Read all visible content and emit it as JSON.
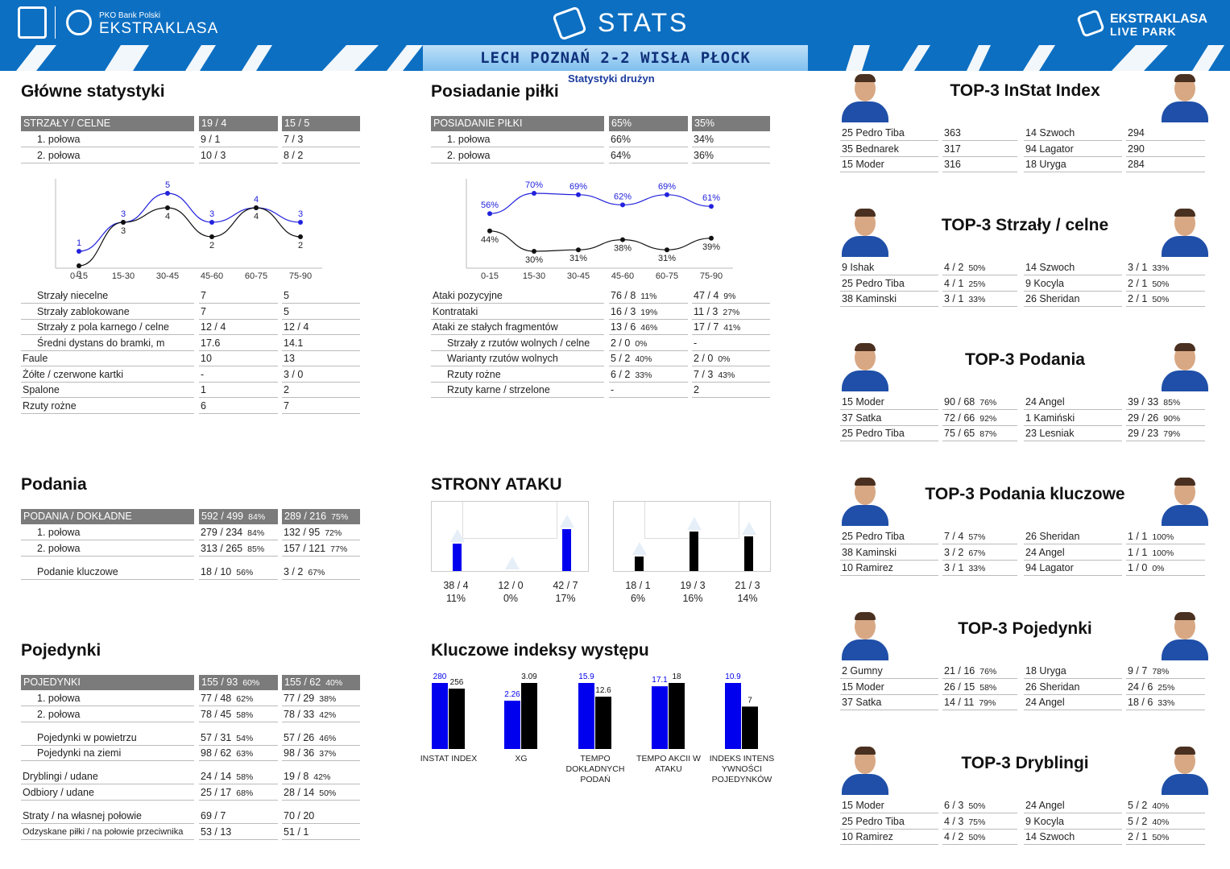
{
  "header": {
    "pko": "PKO Bank Polski",
    "league": "EKSTRAKLASA",
    "stats": "STATS",
    "live1": "EKSTRAKLASA",
    "live2": "LIVE PARK",
    "match": "LECH POZNAŃ 2-2 WISŁA PŁOCK",
    "subtitle": "Statystyki drużyn"
  },
  "main": {
    "title": "Główne statystyki",
    "head": [
      "STRZAŁY / CELNE",
      "19 / 4",
      "15 / 5"
    ],
    "halves": [
      [
        "1. połowa",
        "9 / 1",
        "7 / 3"
      ],
      [
        "2. połowa",
        "10 / 3",
        "8 / 2"
      ]
    ],
    "rows": [
      [
        "Strzały niecelne",
        "7",
        "5"
      ],
      [
        "Strzały zablokowane",
        "7",
        "5"
      ],
      [
        "Strzały z pola karnego / celne",
        "12 / 4",
        "12 / 4"
      ],
      [
        "Średni dystans do bramki, m",
        "17.6",
        "14.1"
      ],
      [
        "Faule",
        "10",
        "13"
      ],
      [
        "Żółte / czerwone kartki",
        "-",
        "3 / 0"
      ],
      [
        "Spalone",
        "1",
        "2"
      ],
      [
        "Rzuty rożne",
        "6",
        "7"
      ]
    ]
  },
  "possession": {
    "title": "Posiadanie piłki",
    "head": [
      "POSIADANIE PIŁKI",
      "65%",
      "35%"
    ],
    "halves": [
      [
        "1. połowa",
        "66%",
        "34%"
      ],
      [
        "2. połowa",
        "64%",
        "36%"
      ]
    ],
    "rows": [
      [
        "Ataki pozycyjne",
        "76 / 8",
        "11%",
        "47 / 4",
        "9%"
      ],
      [
        "Kontrataki",
        "16 / 3",
        "19%",
        "11 / 3",
        "27%"
      ],
      [
        "Ataki ze stałych fragmentów",
        "13 / 6",
        "46%",
        "17 / 7",
        "41%"
      ],
      [
        "Strzały z rzutów wolnych / celne",
        "2 / 0",
        "0%",
        "-",
        ""
      ],
      [
        "Warianty rzutów wolnych",
        "5 / 2",
        "40%",
        "2 / 0",
        "0%"
      ],
      [
        "Rzuty rożne",
        "6 / 2",
        "33%",
        "7 / 3",
        "43%"
      ],
      [
        "Rzuty karne / strzelone",
        "-",
        "",
        "2",
        ""
      ]
    ]
  },
  "passes": {
    "title": "Podania",
    "head": [
      "PODANIA / DOKŁADNE",
      "592 / 499",
      "84%",
      "289 / 216",
      "75%"
    ],
    "rows": [
      [
        "1. połowa",
        "279 / 234",
        "84%",
        "132 / 95",
        "72%"
      ],
      [
        "2. połowa",
        "313 / 265",
        "85%",
        "157 / 121",
        "77%"
      ],
      [
        "Podanie kluczowe",
        "18 / 10",
        "56%",
        "3 / 2",
        "67%"
      ]
    ]
  },
  "duels": {
    "title": "Pojedynki",
    "head": [
      "POJEDYNKI",
      "155 / 93",
      "60%",
      "155 / 62",
      "40%"
    ],
    "rows": [
      [
        "1. połowa",
        "77 / 48",
        "62%",
        "77 / 29",
        "38%"
      ],
      [
        "2. połowa",
        "78 / 45",
        "58%",
        "78 / 33",
        "42%"
      ],
      [
        "Pojedynki w powietrzu",
        "57 / 31",
        "54%",
        "57 / 26",
        "46%"
      ],
      [
        "Pojedynki na ziemi",
        "98 / 62",
        "63%",
        "98 / 36",
        "37%"
      ],
      [
        "Dryblingi / udane",
        "24 / 14",
        "58%",
        "19 / 8",
        "42%"
      ],
      [
        "Odbiory / udane",
        "25 / 17",
        "68%",
        "28 / 14",
        "50%"
      ],
      [
        "Straty / na własnej połowie",
        "69 / 7",
        "",
        "70 / 20",
        ""
      ],
      [
        "Odzyskane piłki / na połowie przeciwnika",
        "53 / 13",
        "",
        "51 / 1",
        ""
      ]
    ]
  },
  "attack": {
    "title": "STRONY ATAKU",
    "home": [
      [
        "38 / 4",
        "11%"
      ],
      [
        "12 / 0",
        "0%"
      ],
      [
        "42 / 7",
        "17%"
      ]
    ],
    "away": [
      [
        "18 / 1",
        "6%"
      ],
      [
        "19 / 3",
        "16%"
      ],
      [
        "21 / 3",
        "14%"
      ]
    ]
  },
  "kpi": {
    "title": "Kluczowe indeksy występu"
  },
  "top": [
    {
      "title": "TOP-3 InStat Index",
      "home": [
        [
          "25 Pedro Tiba",
          "363",
          ""
        ],
        [
          "35 Bednarek",
          "317",
          ""
        ],
        [
          "15 Moder",
          "316",
          ""
        ]
      ],
      "away": [
        [
          "14 Szwoch",
          "294",
          ""
        ],
        [
          "94 Lagator",
          "290",
          ""
        ],
        [
          "18 Uryga",
          "284",
          ""
        ]
      ]
    },
    {
      "title": "TOP-3 Strzały / celne",
      "home": [
        [
          "9   Ishak",
          "4 / 2",
          "50%"
        ],
        [
          "25 Pedro Tiba",
          "4 / 1",
          "25%"
        ],
        [
          "38 Kaminski",
          "3 / 1",
          "33%"
        ]
      ],
      "away": [
        [
          "14 Szwoch",
          "3 / 1",
          "33%"
        ],
        [
          "9   Kocyla",
          "2 / 1",
          "50%"
        ],
        [
          "26 Sheridan",
          "2 / 1",
          "50%"
        ]
      ]
    },
    {
      "title": "TOP-3 Podania",
      "home": [
        [
          "15 Moder",
          "90 / 68",
          "76%"
        ],
        [
          "37 Satka",
          "72 / 66",
          "92%"
        ],
        [
          "25 Pedro Tiba",
          "75 / 65",
          "87%"
        ]
      ],
      "away": [
        [
          "24 Angel",
          "39 / 33",
          "85%"
        ],
        [
          "1   Kamiński",
          "29 / 26",
          "90%"
        ],
        [
          "23 Lesniak",
          "29 / 23",
          "79%"
        ]
      ]
    },
    {
      "title": "TOP-3 Podania kluczowe",
      "home": [
        [
          "25 Pedro Tiba",
          "7 / 4",
          "57%"
        ],
        [
          "38 Kaminski",
          "3 / 2",
          "67%"
        ],
        [
          "10 Ramirez",
          "3 / 1",
          "33%"
        ]
      ],
      "away": [
        [
          "26 Sheridan",
          "1 / 1",
          "100%"
        ],
        [
          "24 Angel",
          "1 / 1",
          "100%"
        ],
        [
          "94 Lagator",
          "1 / 0",
          "0%"
        ]
      ]
    },
    {
      "title": "TOP-3 Pojedynki",
      "home": [
        [
          "2   Gumny",
          "21 / 16",
          "76%"
        ],
        [
          "15 Moder",
          "26 / 15",
          "58%"
        ],
        [
          "37 Satka",
          "14 / 11",
          "79%"
        ]
      ],
      "away": [
        [
          "18 Uryga",
          "9 / 7",
          "78%"
        ],
        [
          "26 Sheridan",
          "24 / 6",
          "25%"
        ],
        [
          "24 Angel",
          "18 / 6",
          "33%"
        ]
      ]
    },
    {
      "title": "TOP-3 Dryblingi",
      "home": [
        [
          "15 Moder",
          "6 / 3",
          "50%"
        ],
        [
          "25 Pedro Tiba",
          "4 / 3",
          "75%"
        ],
        [
          "10 Ramirez",
          "4 / 2",
          "50%"
        ]
      ],
      "away": [
        [
          "24 Angel",
          "5 / 2",
          "40%"
        ],
        [
          "9   Kocyla",
          "5 / 2",
          "40%"
        ],
        [
          "14 Szwoch",
          "2 / 1",
          "50%"
        ]
      ]
    }
  ],
  "chart_data": [
    {
      "type": "line",
      "categories": [
        "0-15",
        "15-30",
        "30-45",
        "45-60",
        "60-75",
        "75-90"
      ],
      "series": [
        {
          "values": [
            1,
            3,
            5,
            3,
            4,
            3
          ],
          "color": "#2222dd"
        },
        {
          "values": [
            0,
            3,
            4,
            2,
            4,
            2
          ],
          "color": "#111111"
        }
      ],
      "ylim": [
        0,
        6
      ]
    },
    {
      "type": "line",
      "categories": [
        "0-15",
        "15-30",
        "30-45",
        "45-60",
        "60-75",
        "75-90"
      ],
      "series": [
        {
          "values": [
            56,
            70,
            69,
            62,
            69,
            61
          ],
          "labels": [
            "56%",
            "70%",
            "69%",
            "62%",
            "69%",
            "61%"
          ],
          "color": "#2222dd"
        },
        {
          "values": [
            44,
            30,
            31,
            38,
            31,
            39
          ],
          "labels": [
            "44%",
            "30%",
            "31%",
            "38%",
            "31%",
            "39%"
          ],
          "color": "#111111"
        }
      ],
      "ylim": [
        20,
        80
      ]
    },
    {
      "type": "bar",
      "categories": [
        "INSTAT INDEX",
        "XG",
        "TEMPO DOKŁADNYCH PODAŃ",
        "TEMPO AKCII W ATAKU",
        "INDEKS INTENSYWNOŚCI POJEDYNKÓW"
      ],
      "series": [
        {
          "values": [
            280,
            2.26,
            15.9,
            17.1,
            10.9
          ],
          "color": "#0000ee"
        },
        {
          "values": [
            256,
            3.09,
            12.6,
            18,
            7
          ],
          "color": "#000000"
        }
      ]
    }
  ],
  "attack_bars": {
    "home": [
      11,
      0,
      17
    ],
    "away": [
      6,
      16,
      14
    ]
  }
}
